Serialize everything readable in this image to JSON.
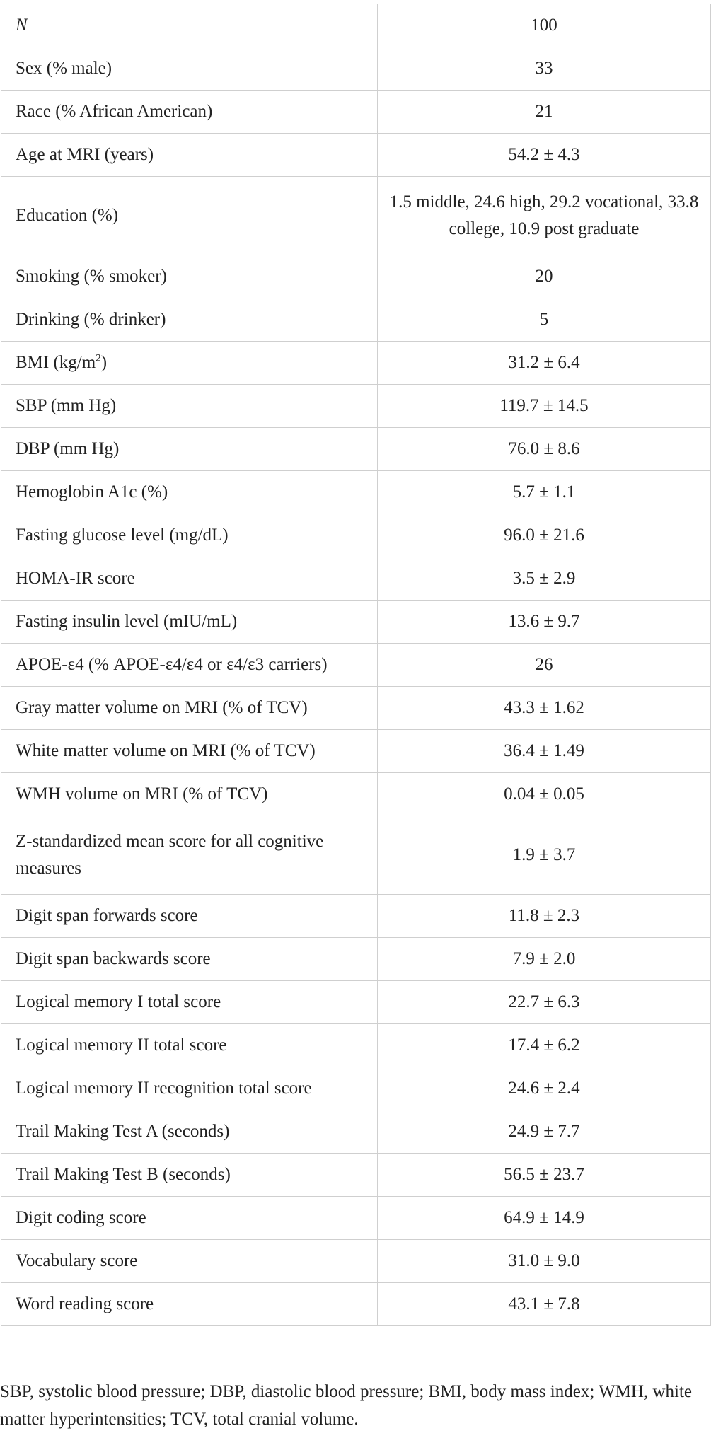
{
  "table": {
    "rows": [
      {
        "label": "N",
        "value": "100",
        "italic_label": true
      },
      {
        "label": "Sex (% male)",
        "value": "33"
      },
      {
        "label": "Race (% African American)",
        "value": "21"
      },
      {
        "label": "Age at MRI (years)",
        "value": "54.2 ± 4.3"
      },
      {
        "label": "Education (%)",
        "value": "1.5 middle, 24.6 high, 29.2 vocational, 33.8 college, 10.9 post graduate",
        "tall": true
      },
      {
        "label": "Smoking (% smoker)",
        "value": "20"
      },
      {
        "label": "Drinking (% drinker)",
        "value": "5"
      },
      {
        "label": "BMI (kg/m",
        "label_sup": "2",
        "label_after": ")",
        "value": "31.2 ± 6.4"
      },
      {
        "label": "SBP (mm Hg)",
        "value": "119.7 ± 14.5"
      },
      {
        "label": "DBP (mm Hg)",
        "value": "76.0 ± 8.6"
      },
      {
        "label": "Hemoglobin A1c (%)",
        "value": "5.7 ± 1.1"
      },
      {
        "label": "Fasting glucose level (mg/dL)",
        "value": "96.0 ± 21.6"
      },
      {
        "label": "HOMA-IR score",
        "value": "3.5 ± 2.9"
      },
      {
        "label": "Fasting insulin level (mIU/mL)",
        "value": "13.6 ± 9.7"
      },
      {
        "label": "APOE-ε4 (% APOE-ε4/ε4 or ε4/ε3 carriers)",
        "value": "26"
      },
      {
        "label": "Gray matter volume on MRI (% of TCV)",
        "value": "43.3 ± 1.62"
      },
      {
        "label": "White matter volume on MRI (% of TCV)",
        "value": "36.4 ± 1.49"
      },
      {
        "label": "WMH volume on MRI (% of TCV)",
        "value": "0.04 ± 0.05"
      },
      {
        "label": "Z-standardized mean score for all cognitive measures",
        "value": "1.9 ± 3.7",
        "tall": true
      },
      {
        "label": "Digit span forwards score",
        "value": "11.8 ± 2.3"
      },
      {
        "label": "Digit span backwards score",
        "value": "7.9 ± 2.0"
      },
      {
        "label": "Logical memory I total score",
        "value": "22.7 ± 6.3"
      },
      {
        "label": "Logical memory II total score",
        "value": "17.4 ± 6.2"
      },
      {
        "label": "Logical memory II recognition total score",
        "value": "24.6 ± 2.4"
      },
      {
        "label": "Trail Making Test A (seconds)",
        "value": "24.9 ± 7.7"
      },
      {
        "label": "Trail Making Test B (seconds)",
        "value": "56.5 ± 23.7"
      },
      {
        "label": "Digit coding score",
        "value": "64.9 ± 14.9"
      },
      {
        "label": "Vocabulary score",
        "value": "31.0 ± 9.0"
      },
      {
        "label": "Word reading score",
        "value": "43.1 ± 7.8"
      }
    ]
  },
  "footnote": "SBP, systolic blood pressure; DBP, diastolic blood pressure; BMI, body mass index; WMH, white matter hyperintensities; TCV, total cranial volume."
}
